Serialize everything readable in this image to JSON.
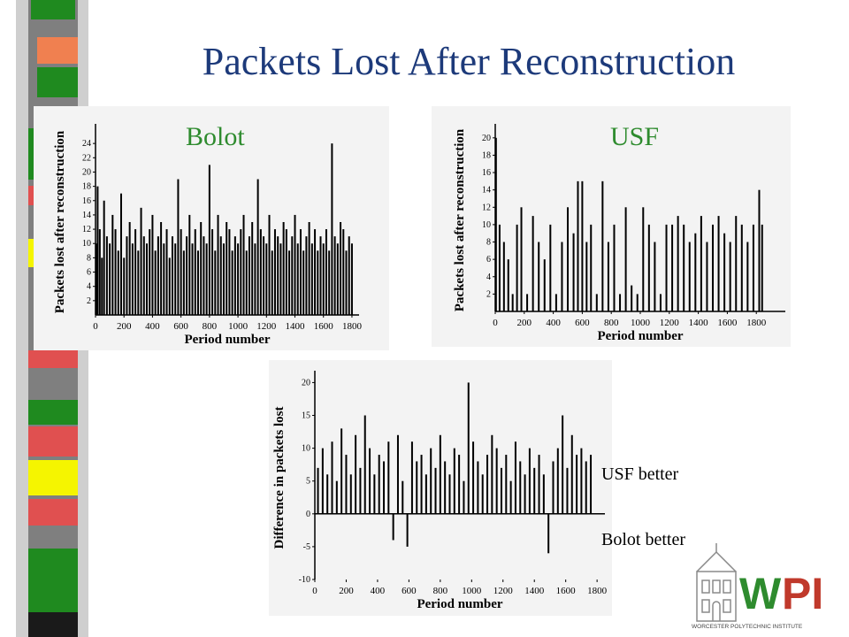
{
  "slide": {
    "title": "Packets Lost After Reconstruction",
    "label_left": "Bolot",
    "label_right": "USF",
    "note_positive": "USF better",
    "note_negative": "Bolot better",
    "logo": {
      "letters": "WPI",
      "subtitle": "WORCESTER POLYTECHNIC INSTITUTE"
    }
  },
  "colors": {
    "title": "#1d3a7a",
    "chart_label": "#2e8b2e",
    "logo_w": "#2e8b2e",
    "logo_pi": "#c0392b",
    "sidebar": [
      "#7f7f7f",
      "#1f8a1f",
      "#f08050",
      "#e05050",
      "#f5f500"
    ]
  },
  "chart_data": [
    {
      "type": "bar",
      "name": "bolot-chart",
      "xlabel": "Period number",
      "ylabel": "Packets lost after reconstruction",
      "xlim": [
        0,
        1850
      ],
      "ylim": [
        0,
        26
      ],
      "xticks": [
        0,
        200,
        400,
        600,
        800,
        1000,
        1200,
        1400,
        1600,
        1800
      ],
      "yticks": [
        2,
        4,
        6,
        8,
        10,
        12,
        14,
        16,
        18,
        20,
        22,
        24
      ],
      "x": [
        5,
        15,
        30,
        45,
        60,
        80,
        100,
        120,
        140,
        160,
        180,
        200,
        220,
        240,
        260,
        280,
        300,
        320,
        340,
        360,
        380,
        400,
        420,
        440,
        460,
        480,
        500,
        520,
        540,
        560,
        580,
        600,
        620,
        640,
        660,
        680,
        700,
        720,
        740,
        760,
        780,
        800,
        820,
        840,
        860,
        880,
        900,
        920,
        940,
        960,
        980,
        1000,
        1020,
        1040,
        1060,
        1080,
        1100,
        1120,
        1140,
        1160,
        1180,
        1200,
        1220,
        1240,
        1260,
        1280,
        1300,
        1320,
        1340,
        1360,
        1380,
        1400,
        1420,
        1440,
        1460,
        1480,
        1500,
        1520,
        1540,
        1560,
        1580,
        1600,
        1620,
        1640,
        1660,
        1680,
        1700,
        1720,
        1740,
        1760,
        1780,
        1800
      ],
      "values": [
        10,
        18,
        12,
        8,
        16,
        11,
        10,
        14,
        12,
        9,
        17,
        8,
        11,
        13,
        10,
        12,
        9,
        15,
        11,
        10,
        12,
        14,
        9,
        11,
        13,
        10,
        12,
        8,
        11,
        10,
        19,
        12,
        9,
        11,
        14,
        10,
        12,
        9,
        13,
        11,
        10,
        21,
        12,
        9,
        14,
        11,
        10,
        13,
        12,
        9,
        11,
        10,
        12,
        14,
        9,
        11,
        13,
        10,
        19,
        12,
        11,
        10,
        14,
        9,
        12,
        11,
        10,
        13,
        12,
        9,
        11,
        14,
        10,
        12,
        9,
        11,
        13,
        10,
        12,
        9,
        11,
        10,
        12,
        9,
        24,
        11,
        10,
        13,
        12,
        9,
        11,
        10
      ]
    },
    {
      "type": "bar",
      "name": "usf-chart",
      "xlabel": "Period number",
      "ylabel": "Packets lost after reconstruction",
      "xlim": [
        0,
        2000
      ],
      "ylim": [
        0,
        21
      ],
      "xticks": [
        0,
        200,
        400,
        600,
        800,
        1000,
        1200,
        1400,
        1600,
        1800
      ],
      "yticks": [
        2,
        4,
        6,
        8,
        10,
        12,
        14,
        16,
        18,
        20
      ],
      "x": [
        5,
        30,
        60,
        90,
        120,
        150,
        180,
        220,
        260,
        300,
        340,
        380,
        420,
        460,
        500,
        540,
        570,
        600,
        630,
        660,
        700,
        740,
        780,
        820,
        860,
        900,
        940,
        980,
        1020,
        1060,
        1100,
        1140,
        1180,
        1220,
        1260,
        1300,
        1340,
        1380,
        1420,
        1460,
        1500,
        1540,
        1580,
        1620,
        1660,
        1700,
        1740,
        1780,
        1820,
        1840
      ],
      "values": [
        20,
        10,
        8,
        6,
        2,
        10,
        12,
        2,
        11,
        8,
        6,
        10,
        2,
        8,
        12,
        9,
        15,
        15,
        8,
        10,
        2,
        15,
        8,
        10,
        2,
        12,
        3,
        2,
        12,
        10,
        8,
        2,
        10,
        10,
        11,
        10,
        8,
        9,
        11,
        8,
        10,
        11,
        9,
        8,
        11,
        10,
        8,
        10,
        14,
        10
      ]
    },
    {
      "type": "bar",
      "name": "difference-chart",
      "xlabel": "Period number",
      "ylabel": "Difference in packets lost",
      "xlim": [
        0,
        1850
      ],
      "ylim": [
        -10,
        21
      ],
      "xticks": [
        0,
        200,
        400,
        600,
        800,
        1000,
        1200,
        1400,
        1600,
        1800
      ],
      "yticks": [
        -10,
        -5,
        0,
        5,
        10,
        15,
        20
      ],
      "x": [
        20,
        50,
        80,
        110,
        140,
        170,
        200,
        230,
        260,
        290,
        320,
        350,
        380,
        410,
        440,
        470,
        500,
        530,
        560,
        590,
        620,
        650,
        680,
        710,
        740,
        770,
        800,
        830,
        860,
        890,
        920,
        950,
        980,
        1010,
        1040,
        1070,
        1100,
        1130,
        1160,
        1190,
        1220,
        1250,
        1280,
        1310,
        1340,
        1370,
        1400,
        1430,
        1460,
        1490,
        1520,
        1550,
        1580,
        1610,
        1640,
        1670,
        1700,
        1730,
        1760
      ],
      "values": [
        7,
        10,
        6,
        11,
        5,
        13,
        9,
        6,
        12,
        7,
        15,
        10,
        6,
        9,
        8,
        11,
        -4,
        12,
        5,
        -5,
        11,
        8,
        9,
        6,
        10,
        7,
        12,
        8,
        6,
        10,
        9,
        5,
        20,
        11,
        8,
        6,
        9,
        12,
        10,
        7,
        9,
        5,
        11,
        8,
        6,
        10,
        7,
        9,
        6,
        -6,
        8,
        10,
        15,
        7,
        12,
        9,
        10,
        8,
        9
      ]
    }
  ]
}
